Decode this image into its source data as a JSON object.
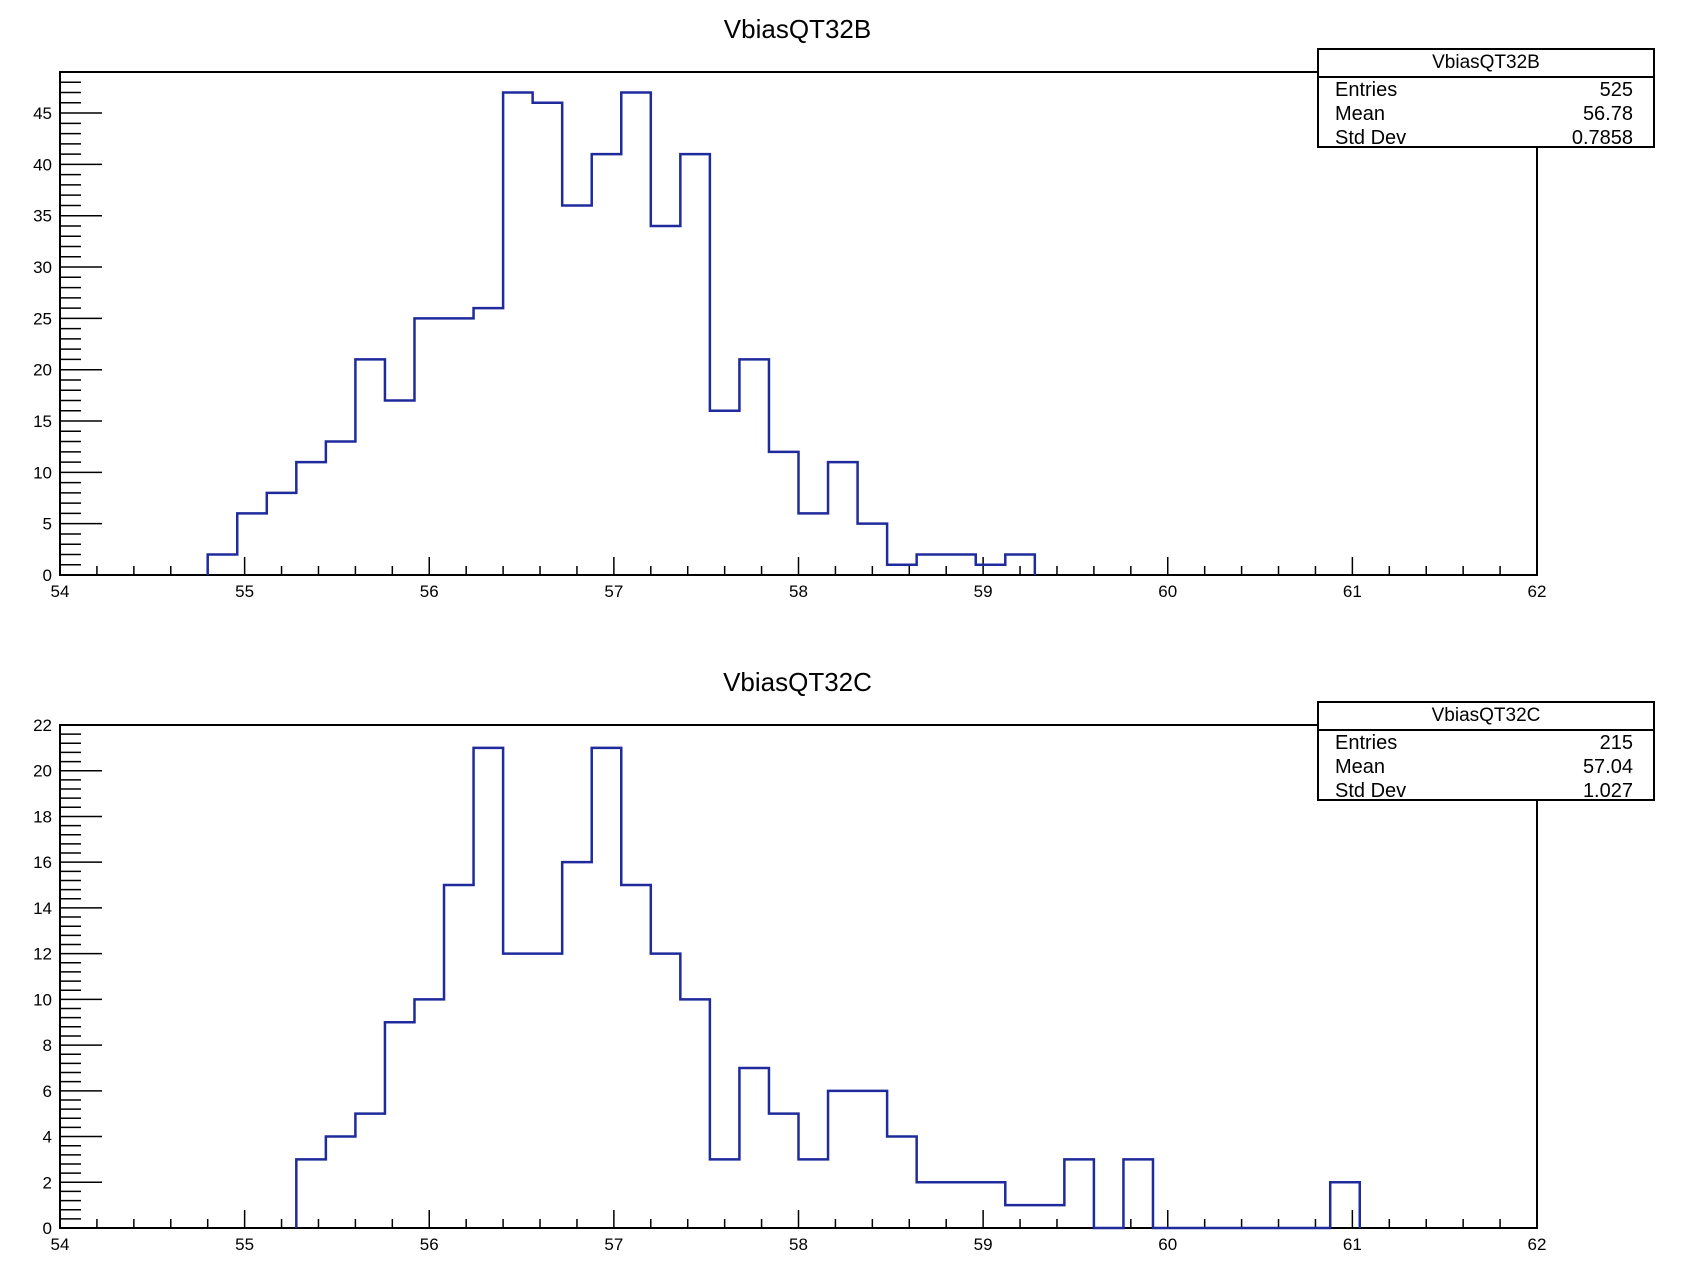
{
  "chart_data": [
    {
      "type": "bar",
      "title": "VbiasQT32B",
      "xlim": [
        54,
        62
      ],
      "ylim": [
        0,
        49
      ],
      "xticks": [
        54,
        55,
        56,
        57,
        58,
        59,
        60,
        61,
        62
      ],
      "yticks": [
        0,
        5,
        10,
        15,
        20,
        25,
        30,
        35,
        40,
        45
      ],
      "bin_edges": [
        54.8,
        54.96,
        55.12,
        55.28,
        55.44,
        55.6,
        55.76,
        55.92,
        56.08,
        56.24,
        56.4,
        56.56,
        56.72,
        56.88,
        57.04,
        57.2,
        57.36,
        57.52,
        57.68,
        57.84,
        58.0,
        58.16,
        58.32,
        58.48,
        58.64,
        58.8,
        58.96,
        59.12,
        59.28
      ],
      "counts": [
        2,
        6,
        8,
        11,
        13,
        21,
        17,
        25,
        25,
        26,
        47,
        46,
        36,
        41,
        47,
        34,
        41,
        16,
        21,
        12,
        6,
        11,
        5,
        1,
        2,
        2,
        1,
        2
      ],
      "line_color": "#1f2b9c",
      "legend": "top-right",
      "stats": {
        "name": "VbiasQT32B",
        "rows": [
          {
            "label": "Entries",
            "value": "525"
          },
          {
            "label": "Mean",
            "value": "56.78"
          },
          {
            "label": "Std Dev",
            "value": "0.7858"
          }
        ]
      }
    },
    {
      "type": "bar",
      "title": "VbiasQT32C",
      "xlim": [
        54,
        62
      ],
      "ylim": [
        0,
        22
      ],
      "xticks": [
        54,
        55,
        56,
        57,
        58,
        59,
        60,
        61,
        62
      ],
      "yticks": [
        0,
        2,
        4,
        6,
        8,
        10,
        12,
        14,
        16,
        18,
        20,
        22
      ],
      "bin_edges": [
        55.28,
        55.44,
        55.6,
        55.76,
        55.92,
        56.08,
        56.24,
        56.4,
        56.56,
        56.72,
        56.88,
        57.04,
        57.2,
        57.36,
        57.52,
        57.68,
        57.84,
        58.0,
        58.16,
        58.32,
        58.48,
        58.64,
        58.8,
        58.96,
        59.12,
        59.28,
        59.44,
        59.6,
        59.76,
        59.92,
        60.08,
        60.24,
        60.4,
        60.56,
        60.72,
        60.88,
        61.04
      ],
      "counts": [
        3,
        4,
        5,
        9,
        10,
        15,
        21,
        12,
        12,
        16,
        21,
        15,
        12,
        10,
        3,
        7,
        5,
        3,
        6,
        6,
        4,
        2,
        2,
        2,
        1,
        1,
        3,
        0,
        3,
        0,
        0,
        0,
        0,
        0,
        0,
        2
      ],
      "line_color": "#1f2b9c",
      "legend": "top-right",
      "stats": {
        "name": "VbiasQT32C",
        "rows": [
          {
            "label": "Entries",
            "value": "215"
          },
          {
            "label": "Mean",
            "value": "57.04"
          },
          {
            "label": "Std Dev",
            "value": "1.027"
          }
        ]
      }
    }
  ]
}
